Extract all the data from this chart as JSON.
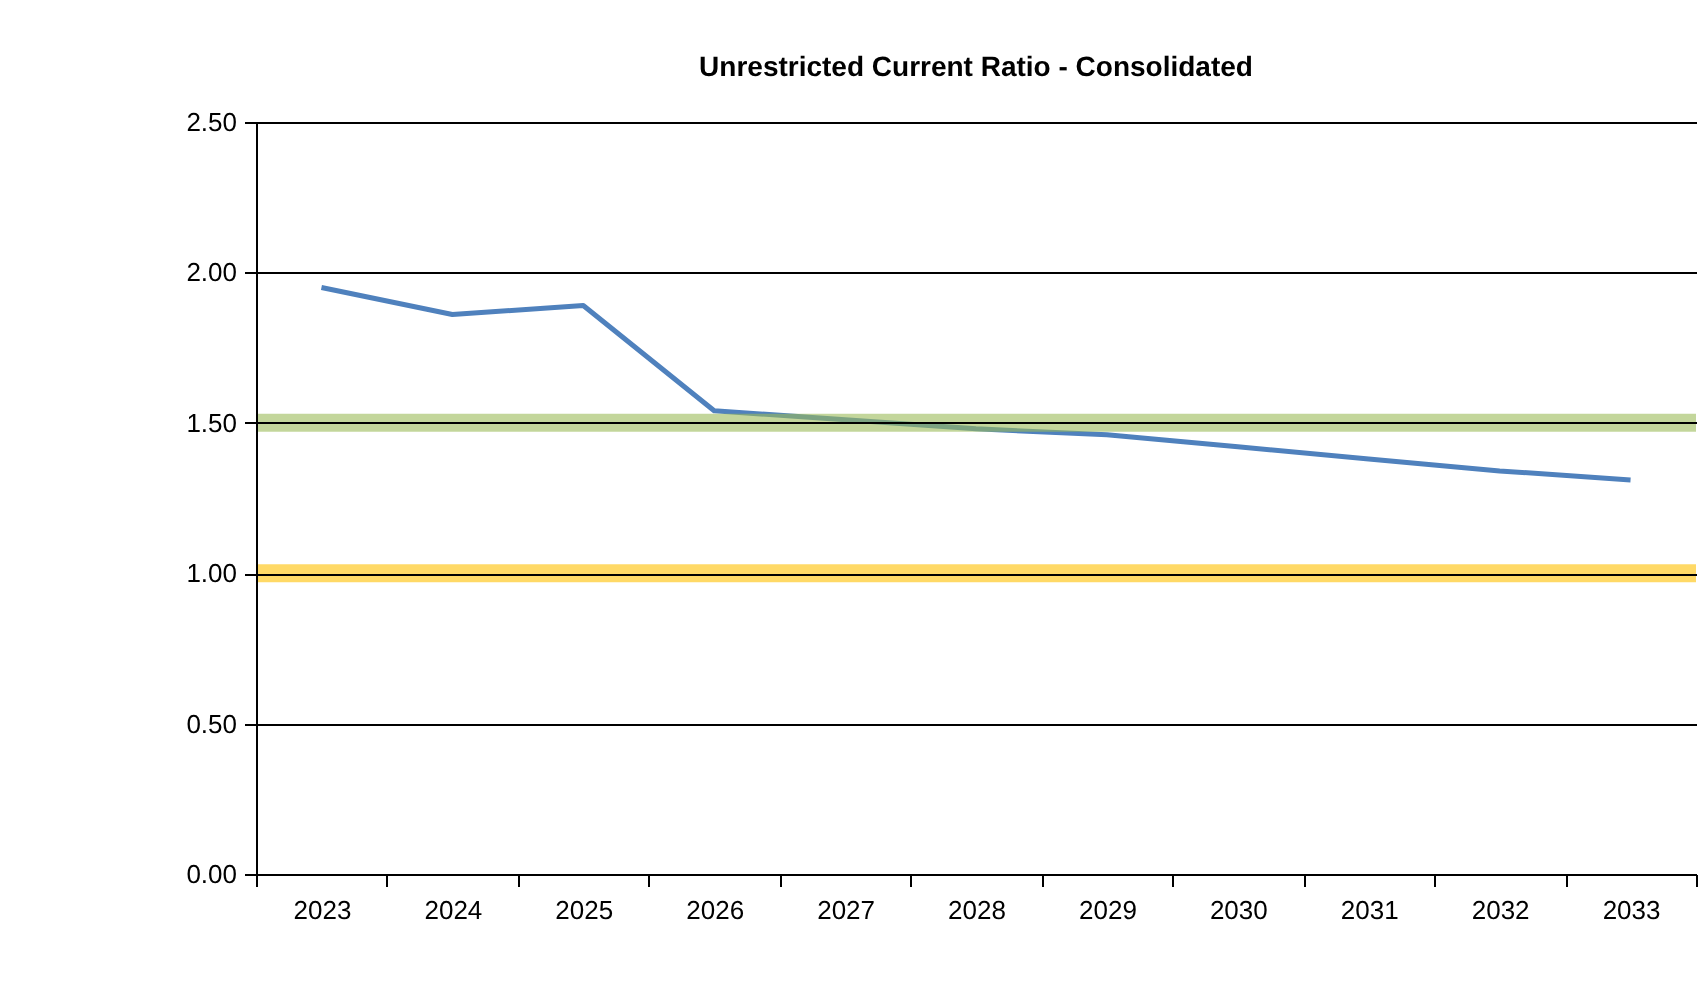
{
  "chart_data": {
    "type": "line",
    "title": "Unrestricted Current Ratio - Consolidated",
    "categories": [
      "2023",
      "2024",
      "2025",
      "2026",
      "2027",
      "2028",
      "2029",
      "2030",
      "2031",
      "2032",
      "2033"
    ],
    "series": [
      {
        "color": "#4f81bd",
        "values": [
          1.95,
          1.86,
          1.89,
          1.54,
          1.51,
          1.48,
          1.46,
          1.42,
          1.38,
          1.34,
          1.31
        ]
      }
    ],
    "ylim": [
      0,
      2.5
    ],
    "yticks": [
      {
        "value": 0,
        "label": "0.00"
      },
      {
        "value": 0.5,
        "label": "0.50"
      },
      {
        "value": 1,
        "label": "1.00"
      },
      {
        "value": 1.5,
        "label": "1.50"
      },
      {
        "value": 2,
        "label": "2.00"
      },
      {
        "value": 2.5,
        "label": "2.50"
      }
    ],
    "bands": [
      {
        "axis": "y",
        "from": 1.47,
        "to": 1.53,
        "color": "#9bbb59"
      },
      {
        "axis": "y",
        "from": 0.97,
        "to": 1.03,
        "color": "#ffc000"
      }
    ],
    "grid": "y",
    "marker": "none",
    "line_style": "solid"
  }
}
